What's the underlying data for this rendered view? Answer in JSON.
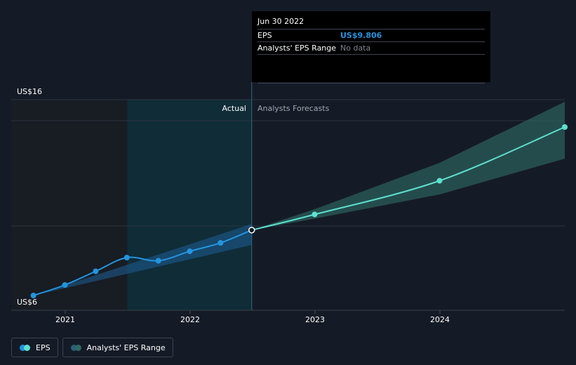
{
  "chart_data": {
    "type": "line",
    "y_axis": {
      "min_label": "US$6",
      "max_label": "US$16",
      "ylim": [
        6,
        16
      ]
    },
    "x_ticks": [
      "2021",
      "2022",
      "2023",
      "2024"
    ],
    "sections": {
      "actual_label": "Actual",
      "forecast_label": "Analysts Forecasts"
    },
    "series": [
      {
        "name": "EPS",
        "color": "#2394df",
        "points": [
          {
            "x": "2020-09-30",
            "y": 6.7
          },
          {
            "x": "2020-12-31",
            "y": 7.2
          },
          {
            "x": "2021-03-31",
            "y": 7.85
          },
          {
            "x": "2021-06-30",
            "y": 8.5
          },
          {
            "x": "2021-09-30",
            "y": 8.35
          },
          {
            "x": "2021-12-31",
            "y": 8.8
          },
          {
            "x": "2022-03-31",
            "y": 9.2
          },
          {
            "x": "2022-06-30",
            "y": 9.806
          }
        ]
      },
      {
        "name": "EPS",
        "color": "#5de0d0",
        "points": [
          {
            "x": "2022-06-30",
            "y": 9.806
          },
          {
            "x": "2022-12-31",
            "y": 10.55
          },
          {
            "x": "2023-12-31",
            "y": 12.15
          },
          {
            "x": "2024-12-31",
            "y": 14.7
          }
        ]
      }
    ],
    "range_band": {
      "name": "Analysts' EPS Range",
      "points": [
        {
          "x": "2022-06-30",
          "low": 9.806,
          "high": 9.806
        },
        {
          "x": "2022-12-31",
          "low": 10.35,
          "high": 10.8
        },
        {
          "x": "2023-12-31",
          "low": 11.5,
          "high": 13.0
        },
        {
          "x": "2024-12-31",
          "low": 13.2,
          "high": 15.9
        }
      ]
    },
    "historic_band": {
      "points": [
        {
          "x": "2020-09-30",
          "low": 6.7,
          "high": 6.7
        },
        {
          "x": "2022-06-30",
          "low": 9.1,
          "high": 10.1
        }
      ]
    }
  },
  "tooltip": {
    "date": "Jun 30 2022",
    "rows": [
      {
        "label": "EPS",
        "value": "US$9.806"
      },
      {
        "label": "Analysts' EPS Range",
        "value": "No data"
      }
    ]
  },
  "legend": [
    {
      "label": "EPS",
      "colors": [
        "#2394df",
        "#5de0d0"
      ]
    },
    {
      "label": "Analysts' EPS Range",
      "colors": [
        "#2c5f7a",
        "#2e6a64"
      ]
    }
  ],
  "colors": {
    "background": "#151b26",
    "past_shade": "#181c23",
    "actual_highlight": "#0e2f3a",
    "eps_past": "#2394df",
    "eps_forecast": "#5de0d0",
    "band_past": "#1f5f96",
    "band_forecast": "#2b5d5a"
  }
}
